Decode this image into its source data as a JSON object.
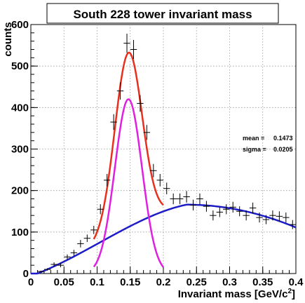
{
  "chart_data": {
    "type": "scatter",
    "title": "South 228 tower invariant mass",
    "xlabel": "Invariant mass [GeV/c",
    "xlabel_sup": "2",
    "xlabel_close": "]",
    "ylabel": "counts",
    "xlim": [
      0,
      0.4
    ],
    "ylim": [
      0,
      600
    ],
    "grid": true,
    "xticks": [
      "0",
      "0.05",
      "0.1",
      "0.15",
      "0.2",
      "0.25",
      "0.3",
      "0.35",
      "0.4"
    ],
    "yticks": [
      "0",
      "100",
      "200",
      "300",
      "400",
      "500",
      "600"
    ],
    "annotations": [
      {
        "label": "mean =",
        "value": "0.1473"
      },
      {
        "label": "sigma =",
        "value": "0.0205"
      }
    ],
    "fit": {
      "gauss_amplitude": 420,
      "mean": 0.1473,
      "sigma": 0.0205,
      "bkg_peak_x": 0.235,
      "bkg_peak_y": 166,
      "bkg_start_x": 0.01,
      "bkg_end_x": 0.4,
      "bkg_end_y": 111
    },
    "colors": {
      "data": "#000000",
      "total_fit": "#e8301c",
      "signal": "#e020e0",
      "background": "#1c1cc8"
    },
    "series": [
      {
        "type": "data",
        "x": [
          0.015,
          0.025,
          0.035,
          0.045,
          0.055,
          0.065,
          0.075,
          0.085,
          0.095,
          0.105,
          0.115,
          0.125,
          0.135,
          0.145,
          0.155,
          0.165,
          0.175,
          0.185,
          0.195,
          0.205,
          0.215,
          0.225,
          0.235,
          0.245,
          0.255,
          0.265,
          0.275,
          0.285,
          0.295,
          0.305,
          0.315,
          0.325,
          0.335,
          0.345,
          0.355,
          0.365,
          0.375,
          0.385,
          0.395
        ],
        "y": [
          5,
          10,
          22,
          20,
          40,
          50,
          72,
          85,
          105,
          155,
          225,
          365,
          440,
          555,
          540,
          410,
          340,
          248,
          225,
          205,
          180,
          180,
          185,
          165,
          180,
          162,
          140,
          148,
          155,
          160,
          150,
          140,
          158,
          135,
          130,
          140,
          138,
          135,
          118
        ],
        "yerr": [
          2,
          3,
          5,
          5,
          6,
          7,
          9,
          9,
          10,
          12,
          15,
          19,
          21,
          23,
          23,
          20,
          18,
          16,
          15,
          14,
          13,
          13,
          14,
          13,
          13,
          13,
          12,
          12,
          12,
          13,
          12,
          12,
          13,
          12,
          11,
          12,
          12,
          12,
          11
        ]
      }
    ]
  }
}
